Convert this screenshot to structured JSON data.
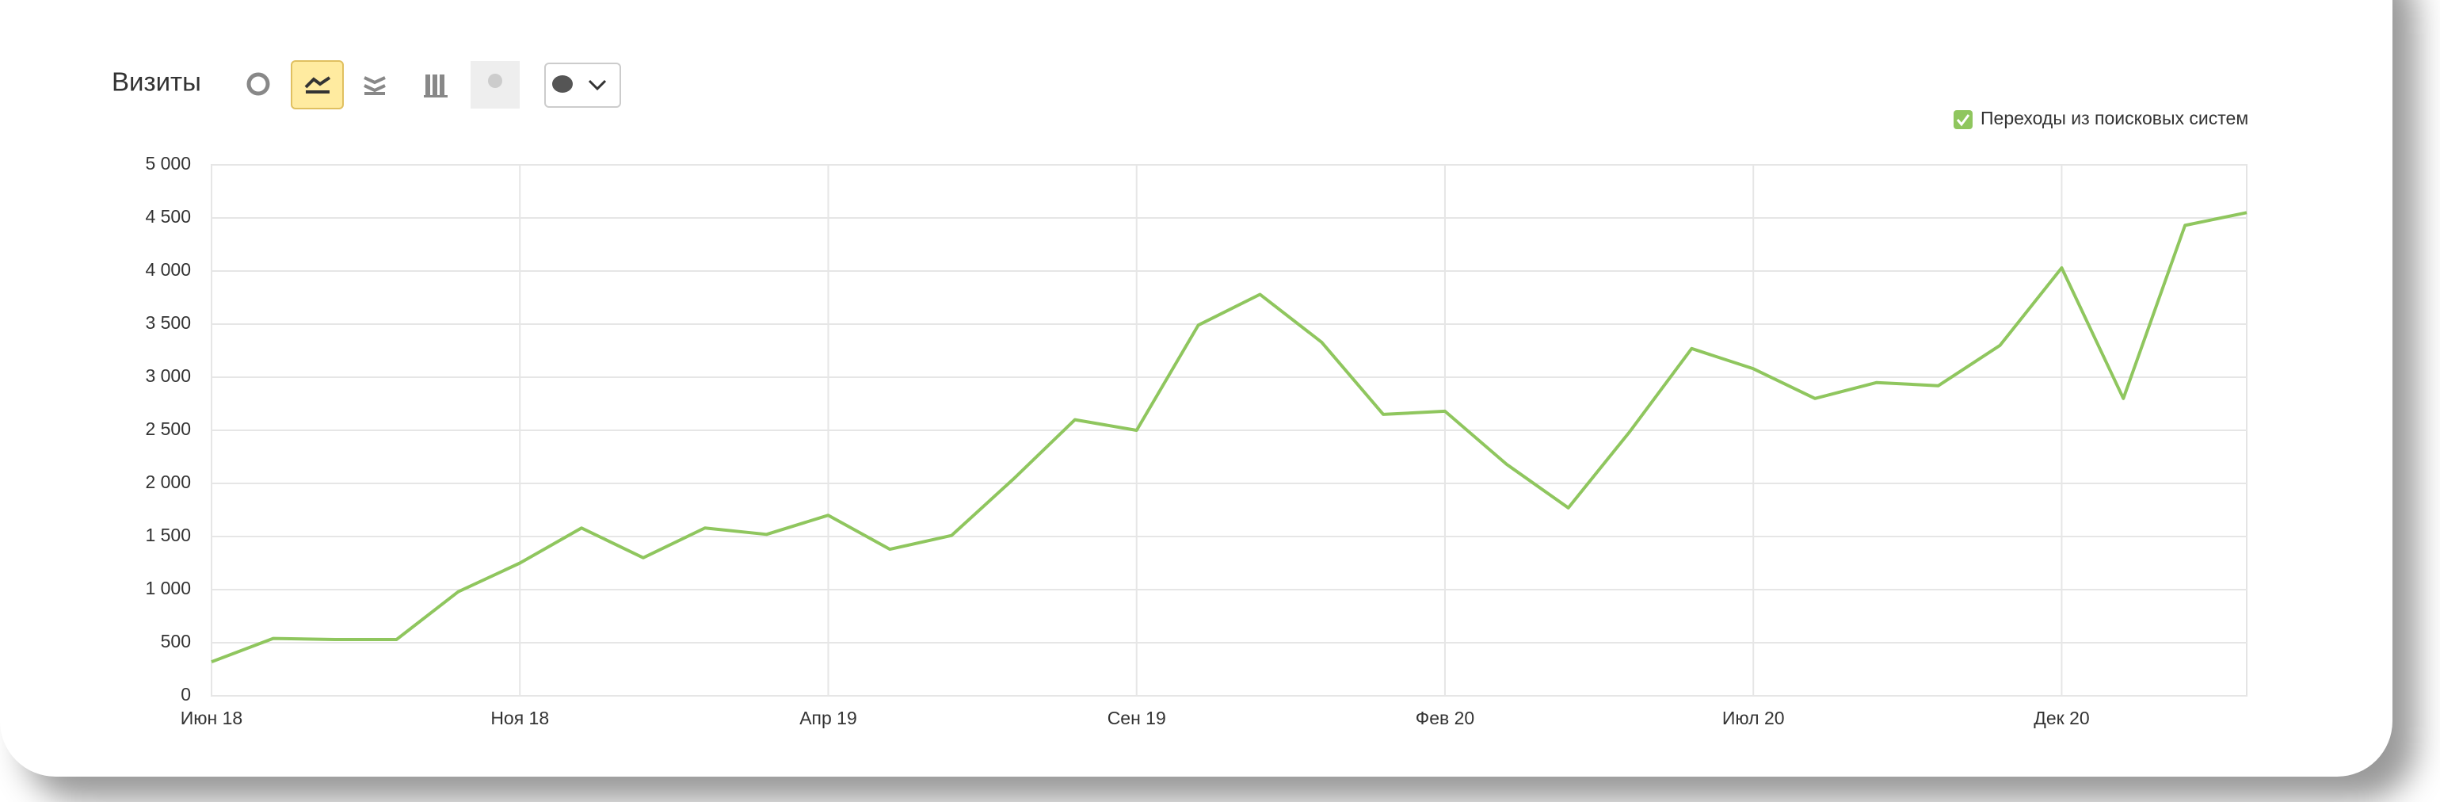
{
  "chart_data": {
    "type": "line",
    "title": "Визиты",
    "categories": [
      "Июн 18",
      null,
      null,
      null,
      null,
      "Ноя 18",
      null,
      null,
      null,
      null,
      "Апр 19",
      null,
      null,
      null,
      null,
      "Сен 19",
      null,
      null,
      null,
      null,
      "Фев 20",
      null,
      null,
      null,
      null,
      "Июл 20",
      null,
      null,
      null,
      null,
      "Дек 20",
      null,
      null,
      null
    ],
    "series": [
      {
        "name": "Переходы из поисковых систем",
        "color": "#8fc65e",
        "values": [
          320,
          540,
          530,
          530,
          980,
          1250,
          1580,
          1300,
          1580,
          1520,
          1700,
          1380,
          1510,
          2040,
          2600,
          2500,
          3490,
          3780,
          3330,
          2650,
          2680,
          2180,
          1770,
          2490,
          3270,
          3080,
          2800,
          2950,
          2920,
          3300,
          4030,
          2800,
          4430,
          4550
        ]
      }
    ],
    "ylim": [
      0,
      5000
    ],
    "yticks": [
      0,
      500,
      {
        "value": 1000,
        "label": "1 000"
      },
      {
        "value": 1500,
        "label": "1 500"
      },
      {
        "value": 2000,
        "label": "2 000"
      },
      {
        "value": 2500,
        "label": "2 500"
      },
      {
        "value": 3000,
        "label": "3 000"
      },
      {
        "value": 3500,
        "label": "3 500"
      },
      {
        "value": 4000,
        "label": "4 000"
      },
      {
        "value": 4500,
        "label": "4 500"
      },
      {
        "value": 5000,
        "label": "5 000"
      }
    ],
    "grid": true,
    "legend": "top-right"
  }
}
